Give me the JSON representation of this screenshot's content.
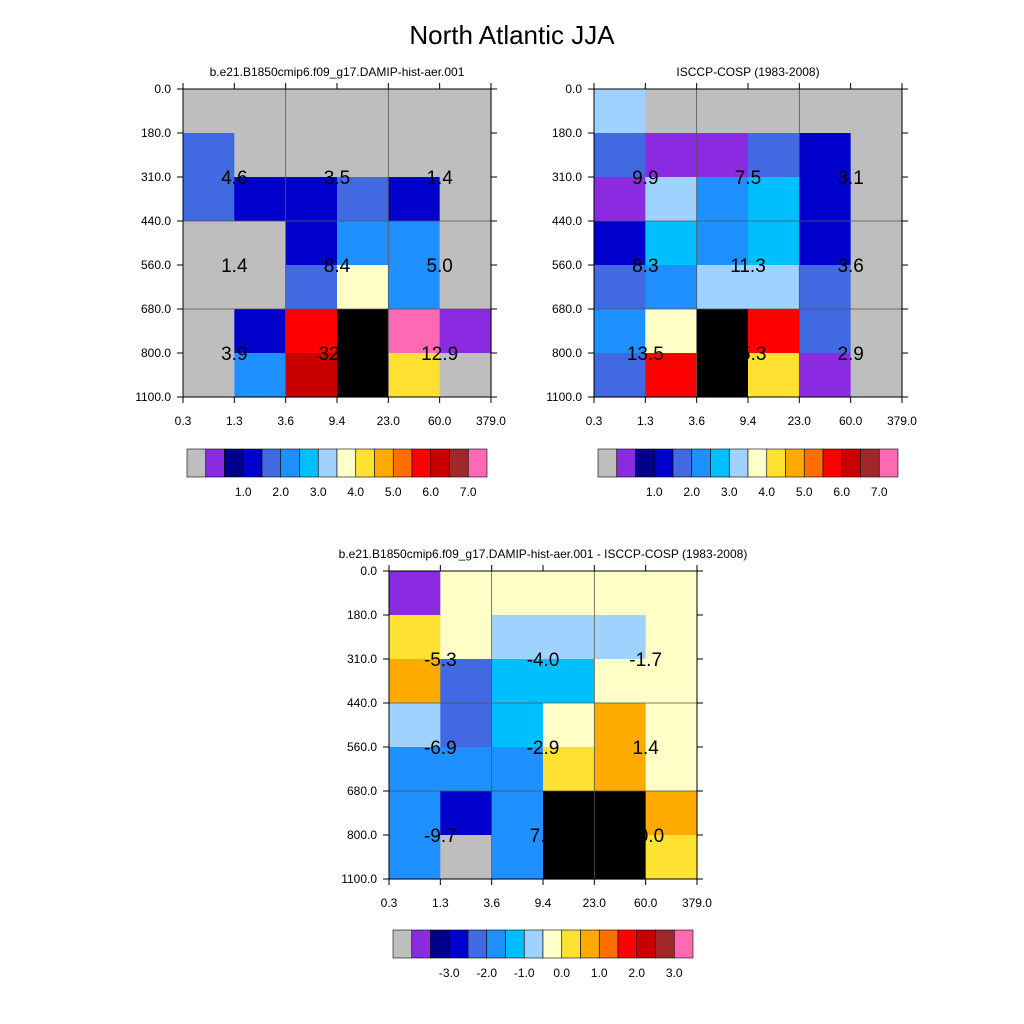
{
  "title": "North Atlantic JJA",
  "chart_data": [
    {
      "type": "heatmap",
      "title": "b.e21.B1850cmip6.f09_g17.DAMIP-hist-aer.001",
      "x_edges": [
        "0.3",
        "1.3",
        "3.6",
        "9.4",
        "23.0",
        "60.0",
        "379.0"
      ],
      "y_edges": [
        "0.0",
        "180.0",
        "310.0",
        "440.0",
        "560.0",
        "680.0",
        "800.0",
        "1100.0"
      ],
      "cell_levels": [
        [
          0,
          0,
          0,
          0,
          0,
          0
        ],
        [
          4,
          0,
          0,
          0,
          0,
          0
        ],
        [
          4,
          3,
          3,
          4,
          3,
          0
        ],
        [
          0,
          0,
          3,
          5,
          5,
          0
        ],
        [
          0,
          0,
          4,
          8,
          5,
          0
        ],
        [
          0,
          3,
          12,
          16,
          15,
          1
        ],
        [
          0,
          5,
          13,
          16,
          9,
          0
        ]
      ],
      "block_labels": [
        {
          "text": "4.6",
          "row": 0,
          "col": 0
        },
        {
          "text": "3.5",
          "row": 0,
          "col": 1
        },
        {
          "text": "1.4",
          "row": 0,
          "col": 2
        },
        {
          "text": "1.4",
          "row": 1,
          "col": 0
        },
        {
          "text": "8.4",
          "row": 1,
          "col": 1
        },
        {
          "text": "5.0",
          "row": 1,
          "col": 2
        },
        {
          "text": "3.9",
          "row": 2,
          "col": 0
        },
        {
          "text": "32.6",
          "row": 2,
          "col": 1
        },
        {
          "text": "12.9",
          "row": 2,
          "col": 2
        }
      ],
      "colorbar_labels": [
        "1.0",
        "2.0",
        "3.0",
        "4.0",
        "5.0",
        "6.0",
        "7.0"
      ],
      "grid": true
    },
    {
      "type": "heatmap",
      "title": "ISCCP-COSP (1983-2008)",
      "x_edges": [
        "0.3",
        "1.3",
        "3.6",
        "9.4",
        "23.0",
        "60.0",
        "379.0"
      ],
      "y_edges": [
        "0.0",
        "180.0",
        "310.0",
        "440.0",
        "560.0",
        "680.0",
        "800.0",
        "1100.0"
      ],
      "cell_levels": [
        [
          7,
          0,
          0,
          0,
          0,
          0
        ],
        [
          4,
          1,
          1,
          4,
          3,
          0
        ],
        [
          1,
          7,
          5,
          6,
          3,
          0
        ],
        [
          3,
          6,
          5,
          6,
          3,
          0
        ],
        [
          4,
          5,
          7,
          7,
          4,
          0
        ],
        [
          5,
          8,
          16,
          12,
          4,
          0
        ],
        [
          4,
          12,
          16,
          9,
          1,
          0
        ]
      ],
      "block_labels": [
        {
          "text": "9.9",
          "row": 0,
          "col": 0
        },
        {
          "text": "7.5",
          "row": 0,
          "col": 1
        },
        {
          "text": "3.1",
          "row": 0,
          "col": 2
        },
        {
          "text": "8.3",
          "row": 1,
          "col": 0
        },
        {
          "text": "11.3",
          "row": 1,
          "col": 1
        },
        {
          "text": "3.6",
          "row": 1,
          "col": 2
        },
        {
          "text": "13.5",
          "row": 2,
          "col": 0
        },
        {
          "text": "25.3",
          "row": 2,
          "col": 1
        },
        {
          "text": "2.9",
          "row": 2,
          "col": 2
        }
      ],
      "colorbar_labels": [
        "1.0",
        "2.0",
        "3.0",
        "4.0",
        "5.0",
        "6.0",
        "7.0"
      ],
      "grid": true
    },
    {
      "type": "heatmap",
      "title": "b.e21.B1850cmip6.f09_g17.DAMIP-hist-aer.001 - ISCCP-COSP (1983-2008)",
      "x_edges": [
        "0.3",
        "1.3",
        "3.6",
        "9.4",
        "23.0",
        "60.0",
        "379.0"
      ],
      "y_edges": [
        "0.0",
        "180.0",
        "310.0",
        "440.0",
        "560.0",
        "680.0",
        "800.0",
        "1100.0"
      ],
      "cell_levels": [
        [
          1,
          8,
          8,
          8,
          8,
          8
        ],
        [
          9,
          8,
          7,
          7,
          7,
          8
        ],
        [
          10,
          4,
          6,
          6,
          8,
          8
        ],
        [
          7,
          4,
          6,
          8,
          10,
          8
        ],
        [
          5,
          5,
          5,
          9,
          10,
          8
        ],
        [
          5,
          3,
          5,
          16,
          16,
          10
        ],
        [
          5,
          0,
          5,
          16,
          16,
          9
        ]
      ],
      "block_labels": [
        {
          "text": "-5.3",
          "row": 0,
          "col": 0
        },
        {
          "text": "-4.0",
          "row": 0,
          "col": 1
        },
        {
          "text": "-1.7",
          "row": 0,
          "col": 2
        },
        {
          "text": "-6.9",
          "row": 1,
          "col": 0
        },
        {
          "text": "-2.9",
          "row": 1,
          "col": 1
        },
        {
          "text": "1.4",
          "row": 1,
          "col": 2
        },
        {
          "text": "-9.7",
          "row": 2,
          "col": 0
        },
        {
          "text": "7.3",
          "row": 2,
          "col": 1
        },
        {
          "text": "10.0",
          "row": 2,
          "col": 2
        }
      ],
      "colorbar_labels": [
        "-3.0",
        "-2.0",
        "-1.0",
        "0.0",
        "1.0",
        "2.0",
        "3.0"
      ],
      "grid": true
    }
  ],
  "palette": [
    "#bebebe",
    "#8a2be2",
    "#00008b",
    "#0000cd",
    "#4169e1",
    "#1e90ff",
    "#00bfff",
    "#a0d2ff",
    "#ffffc8",
    "#ffe132",
    "#ffaa00",
    "#ff6e00",
    "#ff0000",
    "#c80000",
    "#a02828",
    "#ff69b4"
  ]
}
